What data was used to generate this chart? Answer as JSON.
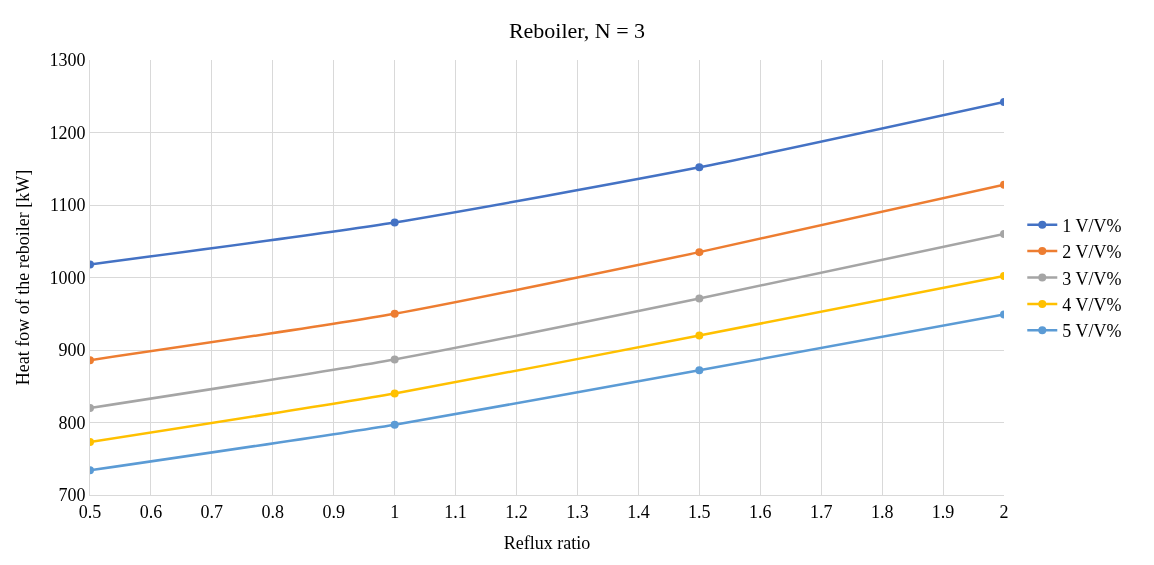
{
  "chart_data": {
    "type": "line",
    "title": "Reboiler, N = 3",
    "xlabel": "Reflux ratio",
    "ylabel": "Heat fow of the reboiler [kW]",
    "x": [
      0.5,
      1,
      1.5,
      2
    ],
    "series": [
      {
        "name": "1 V/V%",
        "color": "#4472c4",
        "values": [
          1018,
          1076,
          1152,
          1242
        ]
      },
      {
        "name": "2 V/V%",
        "color": "#ed7d31",
        "values": [
          886,
          950,
          1035,
          1128
        ]
      },
      {
        "name": "3 V/V%",
        "color": "#a5a5a5",
        "values": [
          820,
          887,
          971,
          1060
        ]
      },
      {
        "name": "4 V/V%",
        "color": "#ffc000",
        "values": [
          773,
          840,
          920,
          1002
        ]
      },
      {
        "name": "5 V/V%",
        "color": "#5b9bd5",
        "values": [
          734,
          797,
          872,
          949
        ]
      }
    ],
    "xlim": [
      0.5,
      2
    ],
    "xticks": [
      0.5,
      0.6,
      0.7,
      0.8,
      0.9,
      1,
      1.1,
      1.2,
      1.3,
      1.4,
      1.5,
      1.6,
      1.7,
      1.8,
      1.9,
      2
    ],
    "ylim": [
      700,
      1300
    ],
    "yticks": [
      700,
      800,
      900,
      1000,
      1100,
      1200,
      1300
    ],
    "grid": true,
    "legend": "right",
    "marker": "circle",
    "line_style": "solid"
  }
}
